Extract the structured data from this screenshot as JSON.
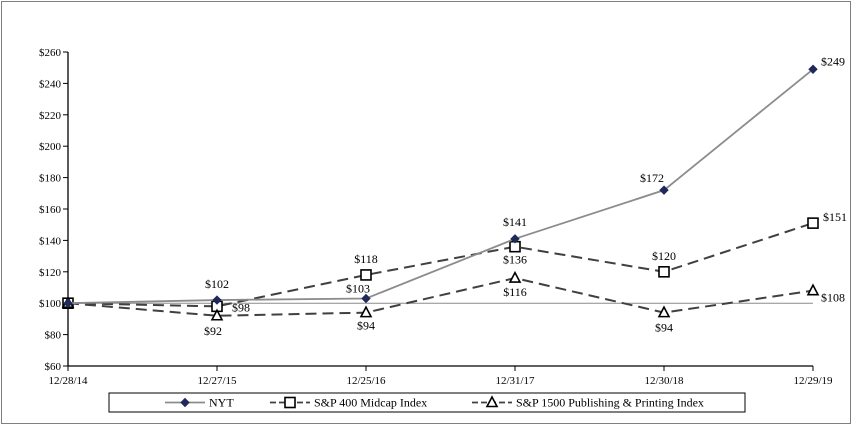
{
  "chart_data": {
    "type": "line",
    "categories": [
      "12/28/14",
      "12/27/15",
      "12/25/16",
      "12/31/17",
      "12/30/18",
      "12/29/19"
    ],
    "ylim": [
      60,
      260
    ],
    "yticks": [
      "$60",
      "$80",
      "$100",
      "$120",
      "$140",
      "$160",
      "$180",
      "$200",
      "$220",
      "$240",
      "$260"
    ],
    "reference_line": 100,
    "series": [
      {
        "name": "NYT",
        "values": [
          100,
          102,
          103,
          141,
          172,
          249
        ],
        "labels": [
          "",
          "$102",
          "$103",
          "$141",
          "$172",
          "$249"
        ],
        "color": "#8c8c8c",
        "marker": "diamond",
        "dash": "solid"
      },
      {
        "name": "S&P 400 Midcap Index",
        "values": [
          100,
          98,
          118,
          136,
          120,
          151
        ],
        "labels": [
          "",
          "$98",
          "$118",
          "$136",
          "$120",
          "$151"
        ],
        "color": "#404040",
        "marker": "square",
        "dash": "dashed"
      },
      {
        "name": "S&P 1500 Publishing & Printing Index",
        "values": [
          100,
          92,
          94,
          116,
          94,
          108
        ],
        "labels": [
          "",
          "$92",
          "$94",
          "$116",
          "$94",
          "$108"
        ],
        "color": "#404040",
        "marker": "triangle",
        "dash": "dashed"
      }
    ]
  }
}
